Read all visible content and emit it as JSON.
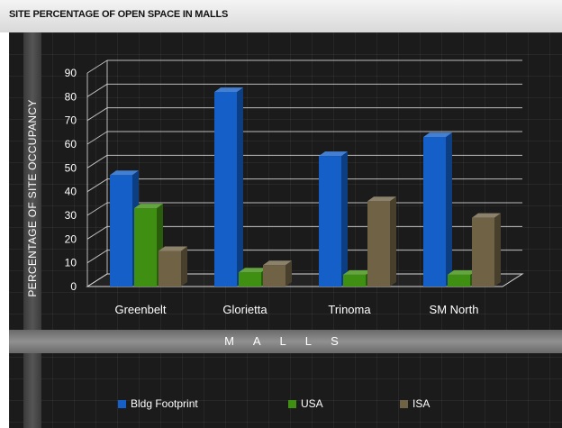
{
  "chart_data": {
    "type": "bar",
    "title": "SITE PERCENTAGE OF OPEN SPACE IN MALLS",
    "xlabel": "M A L L S",
    "ylabel": "PERCENTAGE OF SITE OCCUPANCY",
    "categories": [
      "Greenbelt",
      "Glorietta",
      "Trinoma",
      "SM North"
    ],
    "ylim": [
      0,
      90
    ],
    "yticks": [
      "0",
      "10",
      "20",
      "30",
      "40",
      "50",
      "60",
      "70",
      "80",
      "90"
    ],
    "grid": true,
    "legend_position": "bottom",
    "series": [
      {
        "name": "Bldg Footprint",
        "color": "#1460c8",
        "values": [
          47,
          82,
          55,
          63
        ]
      },
      {
        "name": "USA",
        "color": "#3f8f12",
        "values": [
          33,
          6,
          5,
          5
        ]
      },
      {
        "name": "ISA",
        "color": "#6f6245",
        "values": [
          15,
          9,
          36,
          29
        ]
      }
    ]
  }
}
